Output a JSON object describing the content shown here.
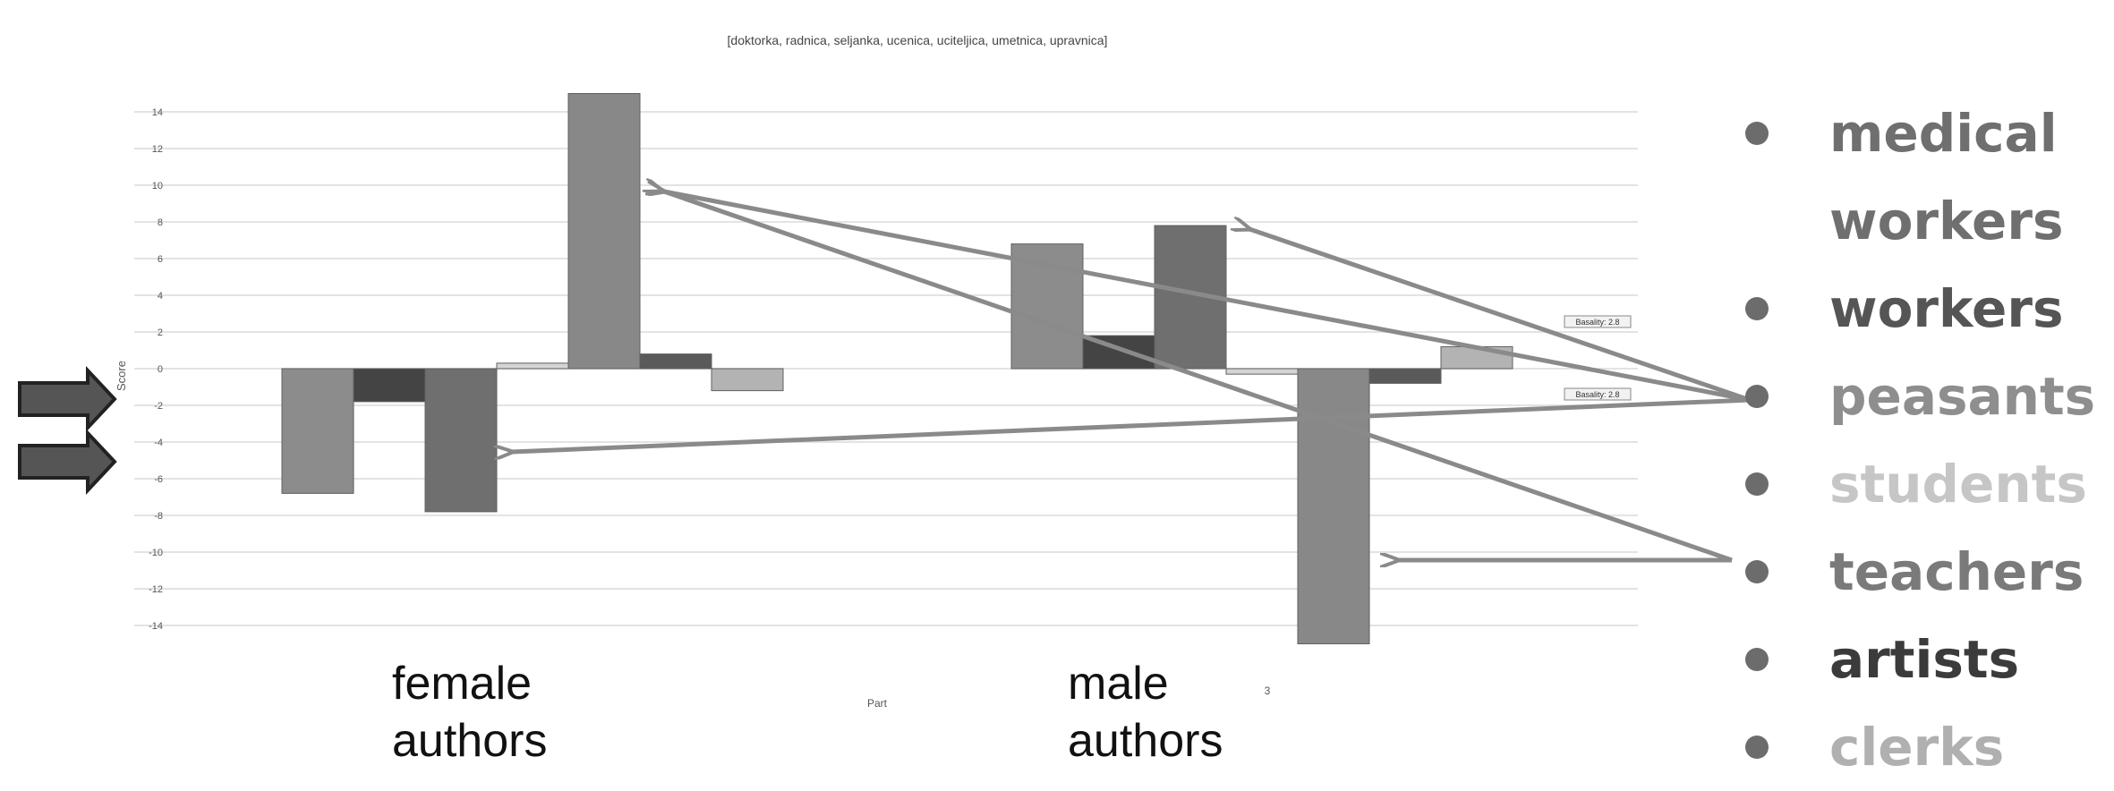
{
  "chart_data": {
    "type": "bar",
    "title": "[doktorka, radnica, seljanka, ucenica, uciteljica, umetnica, upravnica]",
    "xlabel": "Part",
    "ylabel": "Score",
    "x_extra_tick": "3",
    "ylim": [
      -16,
      16
    ],
    "yticks": [
      14,
      12,
      10,
      8,
      6,
      4,
      2,
      0,
      -2,
      -4,
      -6,
      -8,
      -10,
      -12,
      -14
    ],
    "grid": true,
    "groups": [
      "female authors",
      "male authors"
    ],
    "series": [
      {
        "values": [
          -6.8,
          6.8
        ],
        "color": "#8c8c8c"
      },
      {
        "values": [
          -1.8,
          1.8
        ],
        "color": "#444444"
      },
      {
        "values": [
          -7.8,
          7.8
        ],
        "color": "#6f6f6f"
      },
      {
        "values": [
          0.3,
          -0.3
        ],
        "color": "#d4d4d4"
      },
      {
        "values": [
          15.0,
          -15.0
        ],
        "color": "#888888"
      },
      {
        "values": [
          0.8,
          -0.8
        ],
        "color": "#5a5a5a"
      },
      {
        "values": [
          -1.2,
          1.2
        ],
        "color": "#b3b3b3"
      }
    ],
    "reference_labels": [
      "Basality: 2.8",
      "Basality: 2.8"
    ]
  },
  "legend": [
    {
      "label": "medical workers",
      "color": "#6f6f6f"
    },
    {
      "label": "workers",
      "color": "#555555"
    },
    {
      "label": "peasants",
      "color": "#8e8e8e"
    },
    {
      "label": "students",
      "color": "#c6c6c6"
    },
    {
      "label": "teachers",
      "color": "#7a7a7a"
    },
    {
      "label": "artists",
      "color": "#3b3b3b"
    },
    {
      "label": "clerks",
      "color": "#b0b0b0"
    }
  ]
}
